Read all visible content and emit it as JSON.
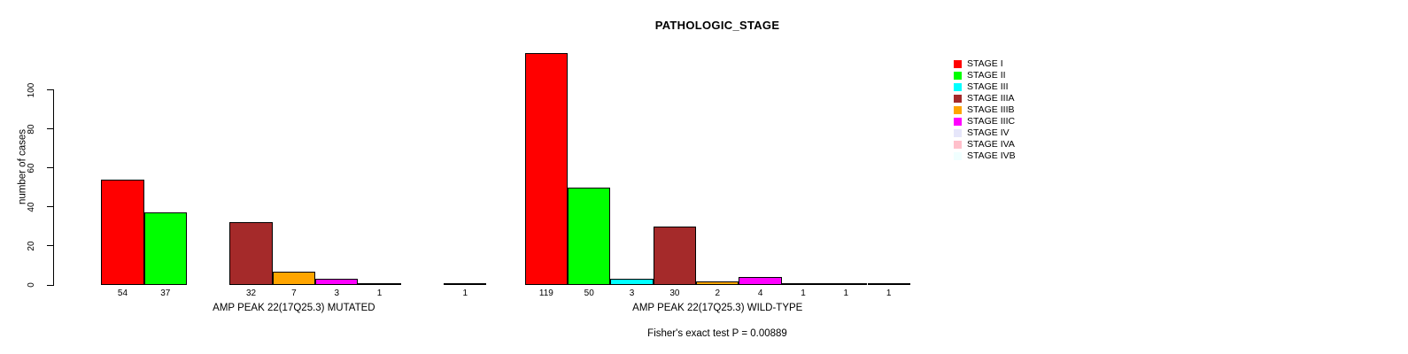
{
  "title": "PATHOLOGIC_STAGE",
  "chart_data": {
    "type": "bar",
    "title": "PATHOLOGIC_STAGE",
    "ylabel": "number of cases",
    "ylim": [
      0,
      100
    ],
    "yticks": [
      0,
      20,
      40,
      60,
      80,
      100
    ],
    "grid": false,
    "legend_position": "right",
    "legend": [
      {
        "label": "STAGE I",
        "color": "#FF0000"
      },
      {
        "label": "STAGE II",
        "color": "#00FF00"
      },
      {
        "label": "STAGE III",
        "color": "#00FFFF"
      },
      {
        "label": "STAGE IIIA",
        "color": "#A52A2A"
      },
      {
        "label": "STAGE IIIB",
        "color": "#FFA500"
      },
      {
        "label": "STAGE IIIC",
        "color": "#FF00FF"
      },
      {
        "label": "STAGE IV",
        "color": "#E6E6FA"
      },
      {
        "label": "STAGE IVA",
        "color": "#FFC0CB"
      },
      {
        "label": "STAGE IVB",
        "color": "#F0FFFF"
      }
    ],
    "groups": [
      {
        "label": "AMP PEAK 22(17Q25.3) MUTATED",
        "values": [
          54,
          37,
          0,
          32,
          7,
          3,
          1,
          0,
          1
        ]
      },
      {
        "label": "AMP PEAK 22(17Q25.3) WILD-TYPE",
        "values": [
          119,
          50,
          3,
          30,
          2,
          4,
          1,
          1,
          1
        ]
      }
    ],
    "annotation": "Fisher's exact test P = 0.00889"
  }
}
